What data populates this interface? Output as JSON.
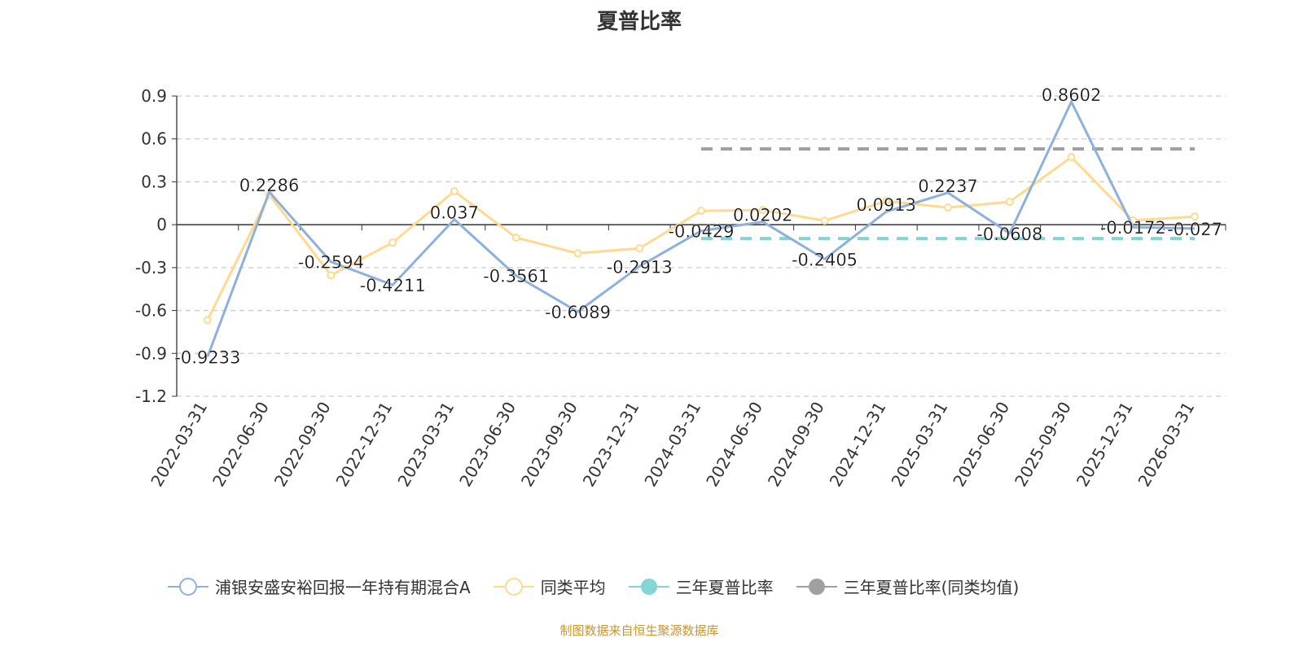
{
  "chart_data": {
    "type": "line",
    "title": "夏普比率",
    "categories": [
      "2022-03-31",
      "2022-06-30",
      "2022-09-30",
      "2022-12-31",
      "2023-03-31",
      "2023-06-30",
      "2023-09-30",
      "2023-12-31",
      "2024-03-31",
      "2024-06-30",
      "2024-09-30",
      "2024-12-31",
      "2025-03-31",
      "2025-06-30",
      "2025-09-30",
      "2025-12-31",
      "2026-03-31"
    ],
    "ylim": [
      -1.2,
      0.9
    ],
    "yticks": [
      "0.9",
      "0.6",
      "0.3",
      "0",
      "-0.3",
      "-0.6",
      "-0.9",
      "-1.2"
    ],
    "ytick_values": [
      0.9,
      0.6,
      0.3,
      0,
      -0.3,
      -0.6,
      -0.9,
      -1.2
    ],
    "grid": true,
    "legend_position": "bottom",
    "series": [
      {
        "name": "浦银安盛安裕回报一年持有期混合A",
        "color": "#8eb0dc",
        "values": [
          -0.9233,
          0.2286,
          -0.2594,
          -0.4211,
          0.037,
          -0.3561,
          -0.6089,
          -0.2913,
          -0.0429,
          0.0202,
          -0.2405,
          0.0913,
          0.2237,
          -0.0608,
          0.8602,
          -0.0172,
          -0.027
        ],
        "labels": [
          "-0.9233",
          "0.2286",
          "-0.2594",
          "-0.4211",
          "0.037",
          "-0.3561",
          "-0.6089",
          "-0.2913",
          "-0.0429",
          "0.0202",
          "-0.2405",
          "0.0913",
          "0.2237",
          "-0.0608",
          "0.8602",
          "-0.0172",
          "-0.027"
        ]
      },
      {
        "name": "同类平均",
        "color": "#ffd98f",
        "values": [
          -0.667,
          0.21,
          -0.354,
          -0.125,
          0.234,
          -0.09,
          -0.2,
          -0.165,
          0.097,
          0.103,
          0.028,
          0.165,
          0.12,
          0.16,
          0.473,
          0.03,
          0.057
        ]
      },
      {
        "name": "三年夏普比率",
        "color": "#84d6d6",
        "constant": -0.097,
        "from_index": 8
      },
      {
        "name": "三年夏普比率(同类均值)",
        "color": "#a0a0a0",
        "constant": 0.53,
        "from_index": 8
      }
    ]
  },
  "source": "制图数据来自恒生聚源数据库"
}
